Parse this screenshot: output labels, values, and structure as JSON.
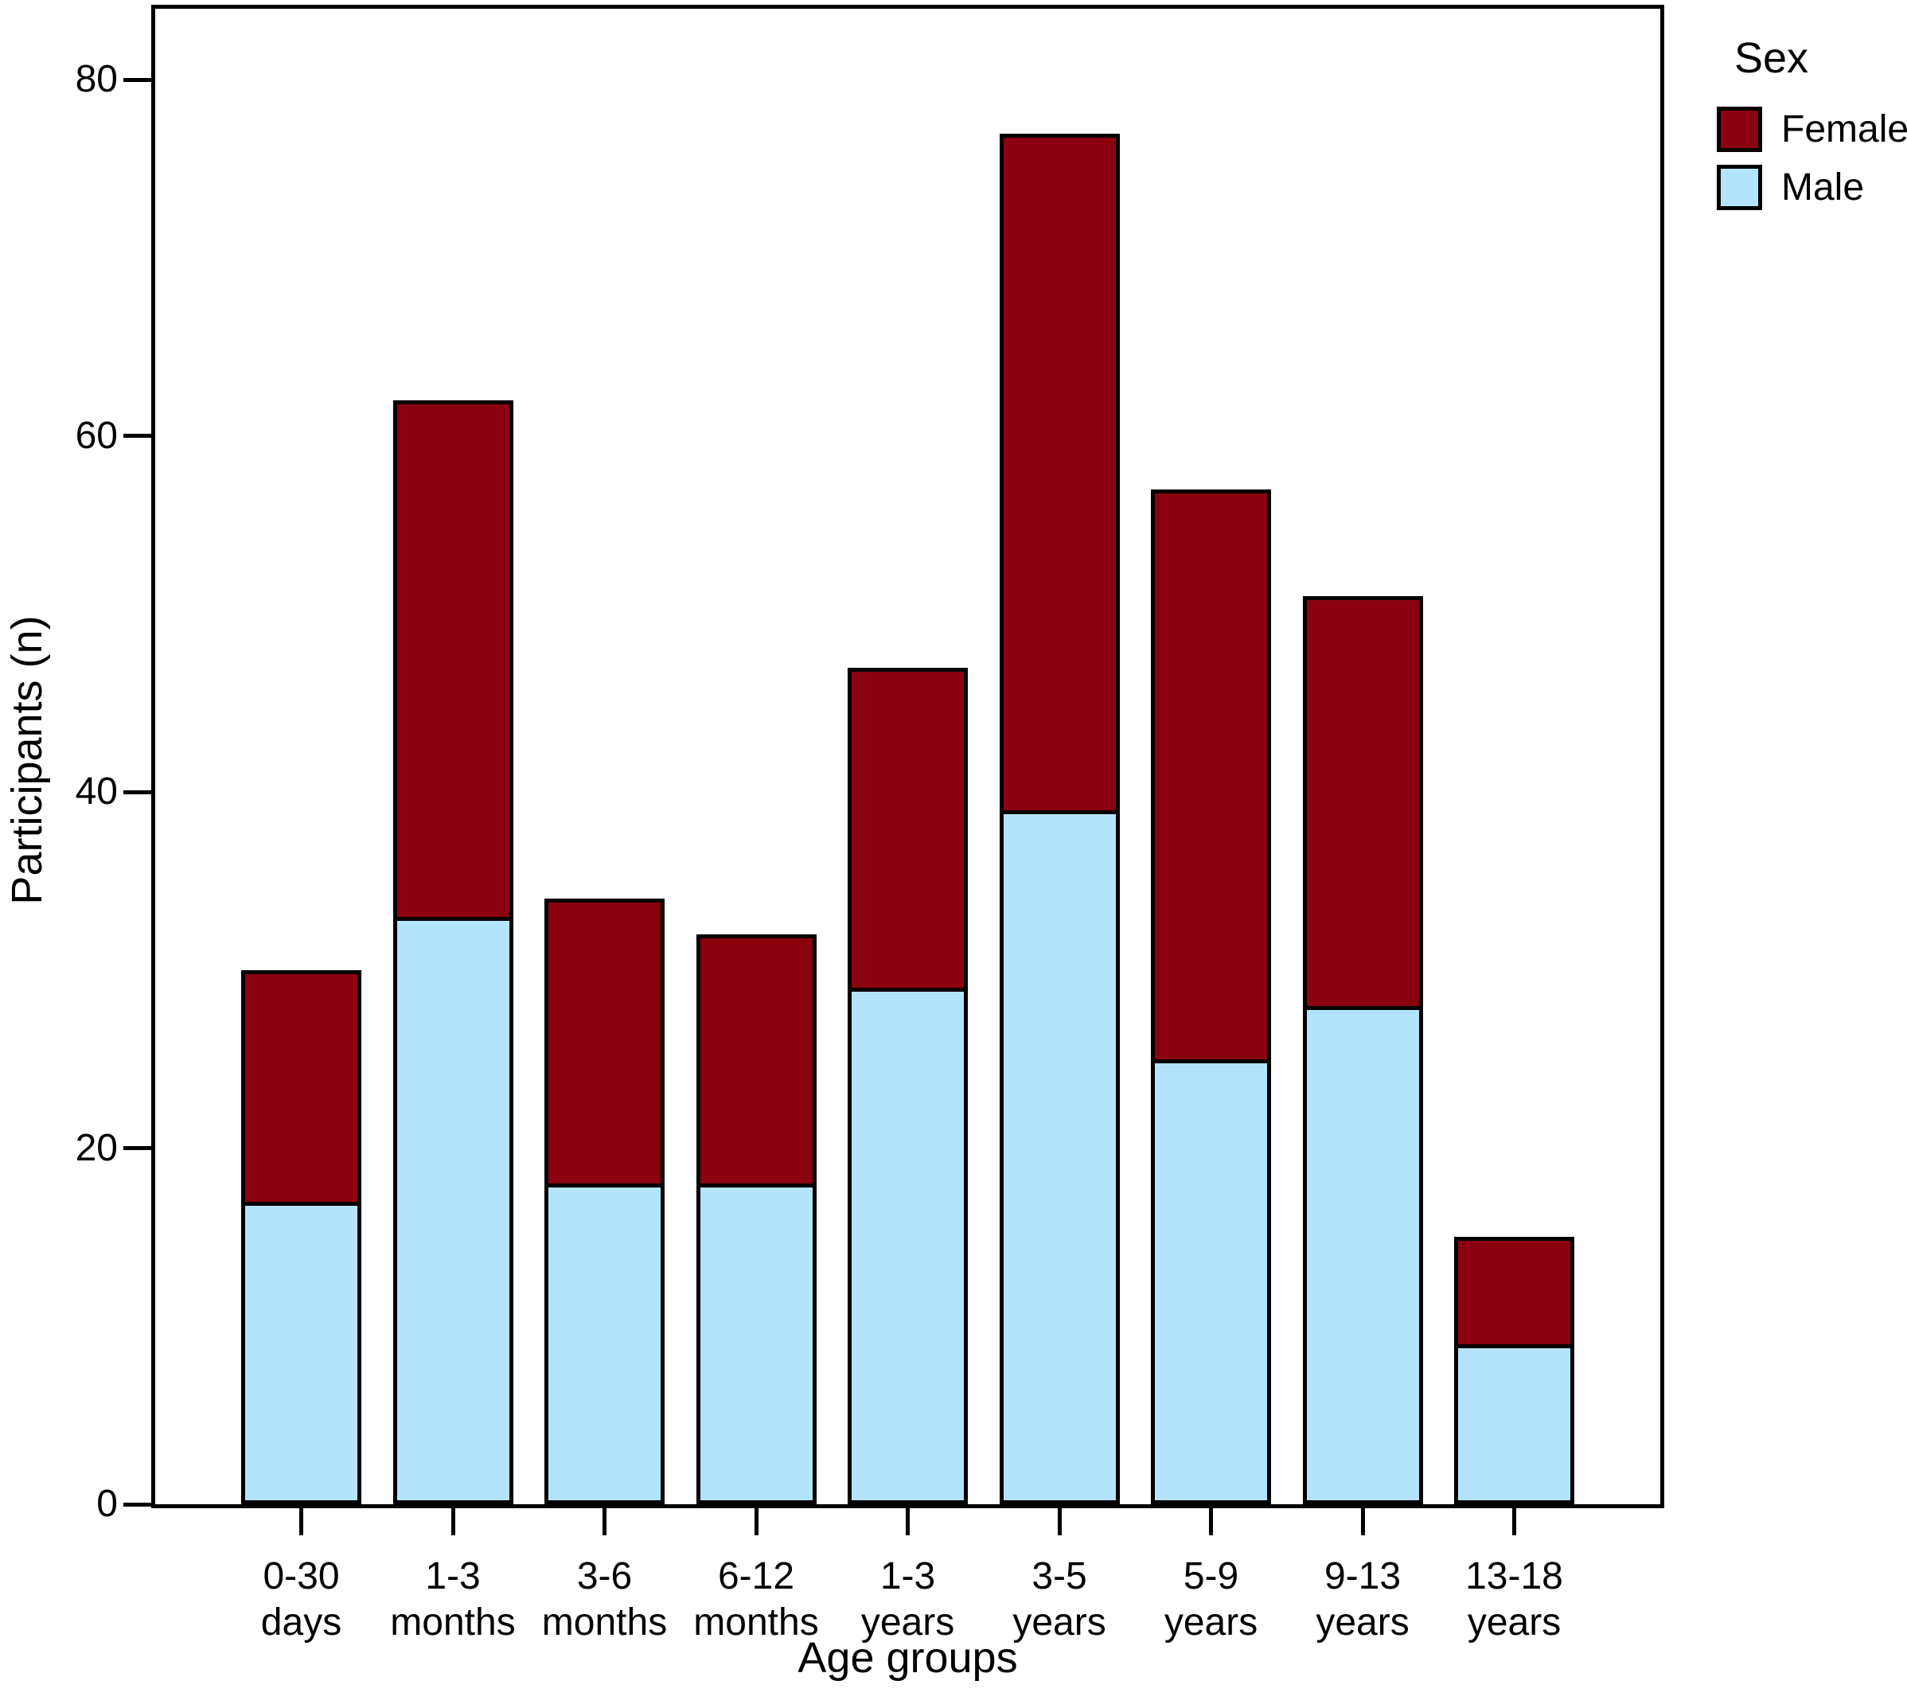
{
  "chart_data": {
    "type": "bar",
    "stacked": true,
    "categories": [
      "0-30\ndays",
      "1-3\nmonths",
      "3-6\nmonths",
      "6-12\nmonths",
      "1-3\nyears",
      "3-5\nyears",
      "5-9\nyears",
      "9-13\nyears",
      "13-18\nyears"
    ],
    "series": [
      {
        "name": "Female",
        "color": "#8B0110",
        "values": [
          13,
          29,
          16,
          14,
          18,
          38,
          32,
          23,
          6
        ]
      },
      {
        "name": "Male",
        "color": "#B4E4FB",
        "values": [
          17,
          33,
          18,
          18,
          29,
          39,
          25,
          28,
          9
        ]
      }
    ],
    "totals": [
      30,
      62,
      34,
      32,
      47,
      77,
      57,
      51,
      15
    ],
    "xlabel": "Age groups",
    "ylabel": "Participants (n)",
    "yticks": [
      0,
      20,
      40,
      60,
      80
    ],
    "ylim": [
      0,
      84
    ],
    "grid": false,
    "legend_title": "Sex",
    "legend_position": "top-right",
    "colors": {
      "female": "#8B0110",
      "male": "#B4E4FB",
      "outline": "#000000",
      "background": "#FFFFFF"
    }
  }
}
